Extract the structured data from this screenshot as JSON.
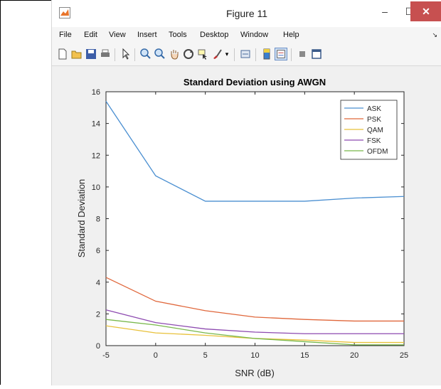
{
  "window": {
    "title": "Figure 11",
    "min_glyph": "–",
    "max_glyph": "☐",
    "close_glyph": "✕"
  },
  "menubar": {
    "items": [
      "File",
      "Edit",
      "View",
      "Insert",
      "Tools",
      "Desktop",
      "Window",
      "Help"
    ],
    "overflow_glyph": "↘"
  },
  "toolbar": {
    "icons": [
      "new-figure-icon",
      "open-file-icon",
      "save-icon",
      "print-icon",
      "pointer-icon",
      "zoom-in-icon",
      "zoom-out-icon",
      "pan-icon",
      "rotate-icon",
      "data-cursor-icon",
      "brush-icon",
      "link-icon",
      "colorbar-icon",
      "legend-icon",
      "hide-plot-tools-icon",
      "show-plot-tools-icon"
    ]
  },
  "colors": {
    "ASK": "#4a8fd1",
    "PSK": "#e0673b",
    "QAM": "#e8c13a",
    "FSK": "#8d4ab0",
    "OFDM": "#78b84a"
  },
  "chart_data": {
    "type": "line",
    "title": "Standard Deviation using AWGN",
    "xlabel": "SNR (dB)",
    "ylabel": "Standard Deviation",
    "x": [
      -5,
      0,
      5,
      10,
      15,
      20,
      25
    ],
    "xlim": [
      -5,
      25
    ],
    "ylim": [
      0,
      16
    ],
    "xticks": [
      -5,
      0,
      5,
      10,
      15,
      20,
      25
    ],
    "yticks": [
      0,
      2,
      4,
      6,
      8,
      10,
      12,
      14,
      16
    ],
    "grid": false,
    "legend_position": "top-right",
    "series": [
      {
        "name": "ASK",
        "values": [
          15.4,
          10.7,
          9.1,
          9.1,
          9.1,
          9.3,
          9.4
        ]
      },
      {
        "name": "PSK",
        "values": [
          4.3,
          2.8,
          2.2,
          1.8,
          1.65,
          1.55,
          1.55
        ]
      },
      {
        "name": "QAM",
        "values": [
          1.25,
          0.8,
          0.65,
          0.45,
          0.35,
          0.2,
          0.2
        ]
      },
      {
        "name": "FSK",
        "values": [
          2.25,
          1.45,
          1.05,
          0.85,
          0.75,
          0.75,
          0.75
        ]
      },
      {
        "name": "OFDM",
        "values": [
          1.65,
          1.3,
          0.8,
          0.45,
          0.25,
          0.05,
          0.05
        ]
      }
    ]
  }
}
